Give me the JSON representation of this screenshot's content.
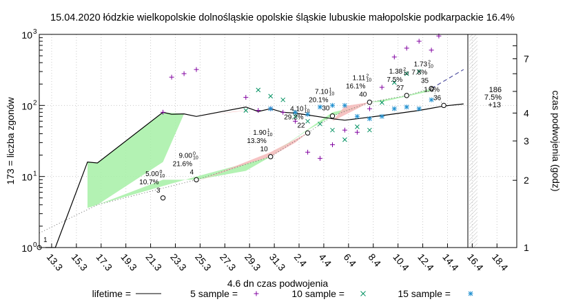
{
  "chart_data": {
    "type": "scatter",
    "title": "15.04.2020 łódzkie wielkopolskie dolnośląskie opolskie śląskie lubuskie małopolskie podkarpackie 16.4%",
    "xlabel": "4.6 dn czas podwojenia",
    "ylabel": "173 = liczba zgonów",
    "y2label": "czas podwojenia (godz)",
    "x_ticks": [
      "13.3",
      "15.3",
      "17.3",
      "19.3",
      "21.3",
      "23.3",
      "25.3",
      "27.3",
      "29.3",
      "31.3",
      "2.4",
      "4.4",
      "6.4",
      "8.4",
      "10.4",
      "12.4",
      "14.4",
      "16.4",
      "18.4"
    ],
    "y_log_scale": true,
    "ylim": [
      1,
      1000
    ],
    "y_ticks": [
      "10^0",
      "10^1",
      "10^2",
      "10^3"
    ],
    "y2_log_scale": true,
    "y2lim": [
      1,
      9
    ],
    "y2_ticks": [
      "1",
      "2",
      "3",
      "4",
      "7"
    ],
    "grid": true,
    "legend_position": "bottom",
    "legend": [
      {
        "label": "lifetime =",
        "style": "line"
      },
      {
        "label": "5 sample =",
        "style": "plus"
      },
      {
        "label": "10 sample =",
        "style": "cross"
      },
      {
        "label": "15 sample =",
        "style": "star"
      }
    ],
    "series": [
      {
        "name": "lifetime",
        "style": "line",
        "color": "#000000",
        "x": [
          12.8,
          13.6,
          16.2,
          17.0,
          22.3,
          23.0,
          24.0,
          25.0,
          29.0,
          30.0,
          31.0,
          32.0,
          33.0,
          36.0,
          37.0,
          38.0,
          40.0,
          43.0,
          45.0,
          46.6
        ],
        "y": [
          1,
          1,
          16,
          15.5,
          80,
          75,
          76,
          70,
          95,
          82,
          90,
          80,
          78,
          65,
          62,
          65,
          72,
          85,
          98,
          105
        ]
      },
      {
        "name": "5 sample",
        "style": "plus",
        "color": "#8000a0",
        "x": [
          22.3,
          23.0,
          24.0,
          25.0,
          29.0,
          30.0,
          31.0,
          32.0,
          33.0,
          34.0,
          35.0,
          36.0,
          37.0,
          38.0,
          39.0,
          40.0,
          41.0,
          42.0,
          43.0,
          44.0,
          44.6
        ],
        "y": [
          80,
          250,
          280,
          320,
          130,
          85,
          90,
          80,
          60,
          22,
          18,
          28,
          45,
          42,
          90,
          180,
          480,
          640,
          800,
          600,
          950
        ]
      },
      {
        "name": "10 sample",
        "style": "cross",
        "color": "#009060",
        "x": [
          29.0,
          30.0,
          31.0,
          32.0,
          33.0,
          34.0,
          35.0,
          36.0,
          37.0,
          38.0,
          39.0,
          40.0,
          41.0,
          42.0,
          43.0
        ],
        "y": [
          85,
          165,
          135,
          120,
          70,
          60,
          55,
          45,
          33,
          50,
          45,
          110,
          210,
          280,
          300
        ]
      },
      {
        "name": "15 sample",
        "style": "star",
        "color": "#2090d0",
        "x": [
          31.0,
          33.0,
          34.0,
          35.0,
          36.0,
          37.0,
          38.0,
          39.0,
          40.0,
          41.0,
          42.0,
          43.0,
          44.0
        ],
        "y": [
          90,
          80,
          75,
          95,
          100,
          100,
          70,
          65,
          70,
          90,
          95,
          90,
          120
        ]
      }
    ],
    "milestones": [
      {
        "x": 0.0,
        "y": 1,
        "count": "1",
        "mantissa": "",
        "exp": "",
        "pct": ""
      },
      {
        "x": 22.3,
        "y": 5,
        "count": "3",
        "mantissa": "5.00",
        "exp": "0",
        "pct": "10.7%"
      },
      {
        "x": 25.0,
        "y": 9,
        "count": "4",
        "mantissa": "9.00",
        "exp": "0",
        "pct": "21.6%"
      },
      {
        "x": 31.0,
        "y": 19,
        "count": "10",
        "mantissa": "1.90",
        "exp": "1",
        "pct": "13.3%"
      },
      {
        "x": 34.0,
        "y": 41,
        "count": "22",
        "mantissa": "4.10",
        "exp": "1",
        "pct": "29.2%"
      },
      {
        "x": 36.0,
        "y": 71,
        "count": "30",
        "mantissa": "7.10",
        "exp": "1",
        "pct": "20.1%"
      },
      {
        "x": 39.0,
        "y": 111,
        "count": "40",
        "mantissa": "1.11",
        "exp": "2",
        "pct": "16.1%"
      },
      {
        "x": 42.0,
        "y": 138,
        "count": "27",
        "mantissa": "1.38",
        "exp": "2",
        "pct": "7.5%"
      },
      {
        "x": 44.0,
        "y": 173,
        "count": "35",
        "mantissa": "1.73",
        "exp": "2",
        "pct": "7.8%"
      },
      {
        "x": 45.0,
        "y": 100,
        "count": "36",
        "mantissa": "",
        "exp": "",
        "pct": "1.6%"
      }
    ],
    "forecast": {
      "label": "186",
      "pct": "7.5%",
      "delta": "+13"
    }
  }
}
